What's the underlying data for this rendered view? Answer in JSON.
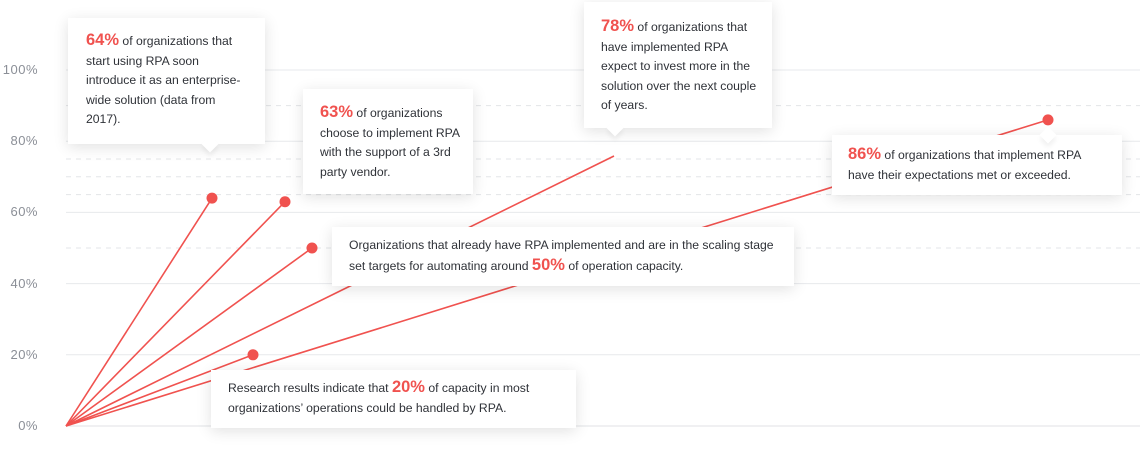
{
  "chart_data": {
    "type": "line",
    "title": "",
    "xlabel": "",
    "ylabel": "",
    "ylim": [
      0,
      100
    ],
    "yticks": [
      "0%",
      "20%",
      "40%",
      "60%",
      "80%",
      "100%"
    ],
    "grid": true,
    "line_color": "#f0524f",
    "points": [
      {
        "value": 64,
        "highlight": "64%",
        "text_before": "",
        "text_after": " of organizations that start using RPA soon introduce it as an enterprise-wide solution (data from 2017)."
      },
      {
        "value": 63,
        "highlight": "63%",
        "text_before": "",
        "text_after": " of organizations choose to implement RPA with the support of a 3rd party vendor."
      },
      {
        "value": 50,
        "highlight": "50%",
        "text_before": "Organizations that already have RPA implemented and are in the scaling stage set targets for automating around ",
        "text_after": " of operation capacity."
      },
      {
        "value": 20,
        "highlight": "20%",
        "text_before": "Research results indicate that ",
        "text_after": " of capacity in most organizations’ operations could be handled by RPA."
      },
      {
        "value": 78,
        "highlight": "78%",
        "text_before": "",
        "text_after": " of organizations that have implemented RPA expect to invest more in the solution over the next couple of years."
      },
      {
        "value": 86,
        "highlight": "86%",
        "text_before": "",
        "text_after": " of organizations that implement RPA have their expectations met or exceeded."
      }
    ]
  }
}
